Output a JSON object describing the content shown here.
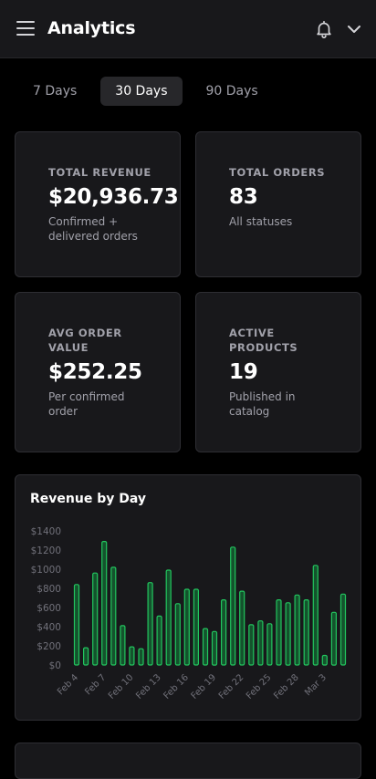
{
  "header": {
    "title": "Analytics",
    "bell_icon": "bell-icon",
    "menu_icon": "menu-icon",
    "dropdown_icon": "chevron-down-icon"
  },
  "tabs": [
    {
      "label": "7 Days",
      "active": false
    },
    {
      "label": "30 Days",
      "active": true
    },
    {
      "label": "90 Days",
      "active": false
    }
  ],
  "stats": [
    {
      "label": "TOTAL REVENUE",
      "value": "$20,936.73",
      "sub": "Confirmed + delivered orders"
    },
    {
      "label": "TOTAL ORDERS",
      "value": "83",
      "sub": "All statuses"
    },
    {
      "label": "AVG ORDER VALUE",
      "value": "$252.25",
      "sub": "Per confirmed order"
    },
    {
      "label": "ACTIVE PRODUCTS",
      "value": "19",
      "sub": "Published in catalog"
    }
  ],
  "colors": {
    "accent": "#22c55e",
    "bar_fill": "#14532d",
    "background": "#000000",
    "card": "#18181b"
  },
  "chart_data": {
    "type": "bar",
    "title": "Revenue by Day",
    "categories": [
      "Feb 4",
      "Feb 5",
      "Feb 6",
      "Feb 7",
      "Feb 8",
      "Feb 9",
      "Feb 10",
      "Feb 11",
      "Feb 12",
      "Feb 13",
      "Feb 14",
      "Feb 15",
      "Feb 16",
      "Feb 17",
      "Feb 18",
      "Feb 19",
      "Feb 20",
      "Feb 21",
      "Feb 22",
      "Feb 23",
      "Feb 24",
      "Feb 25",
      "Feb 26",
      "Feb 27",
      "Feb 28",
      "Mar 1",
      "Mar 2",
      "Mar 3",
      "Mar 4",
      "Mar 5"
    ],
    "tick_labels": [
      "Feb 4",
      "Feb 7",
      "Feb 10",
      "Feb 13",
      "Feb 16",
      "Feb 19",
      "Feb 22",
      "Feb 25",
      "Feb 28",
      "Mar 3"
    ],
    "values": [
      840,
      180,
      960,
      1290,
      1020,
      410,
      190,
      170,
      860,
      510,
      990,
      640,
      790,
      790,
      380,
      350,
      680,
      1230,
      770,
      420,
      460,
      430,
      680,
      650,
      730,
      680,
      1040,
      100,
      550,
      740
    ],
    "y_ticks": [
      "$0",
      "$200",
      "$400",
      "$600",
      "$800",
      "$1000",
      "$1200",
      "$1400"
    ],
    "ylim": [
      0,
      1400
    ],
    "xlabel": "",
    "ylabel": "",
    "grid": false
  }
}
